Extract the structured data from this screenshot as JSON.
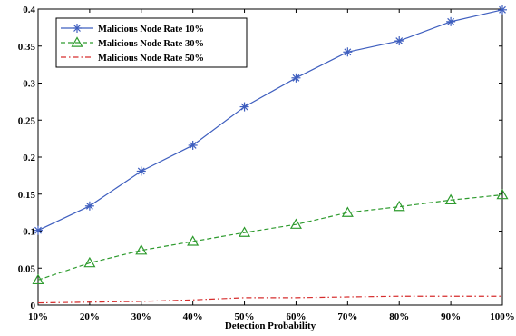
{
  "chart_data": {
    "type": "line",
    "xlabel": "Detection Probability",
    "ylabel": "",
    "x": [
      "10%",
      "20%",
      "30%",
      "40%",
      "50%",
      "60%",
      "70%",
      "80%",
      "90%",
      "100%"
    ],
    "ylim": [
      0,
      0.4
    ],
    "yticks": [
      "0",
      "0.05",
      "0.1",
      "0.15",
      "0.2",
      "0.25",
      "0.3",
      "0.35",
      "0.4"
    ],
    "grid": false,
    "legend_position": "top-left",
    "series": [
      {
        "name": "Malicious Node Rate 10%",
        "color": "#3f5fbf",
        "marker": "star",
        "line_style": "solid",
        "values": [
          0.101,
          0.134,
          0.181,
          0.216,
          0.268,
          0.307,
          0.342,
          0.357,
          0.383,
          0.399
        ]
      },
      {
        "name": "Malicious Node Rate 30%",
        "color": "#2e9b2e",
        "marker": "triangle",
        "line_style": "dashed",
        "values": [
          0.034,
          0.057,
          0.074,
          0.086,
          0.098,
          0.109,
          0.125,
          0.133,
          0.142,
          0.149
        ]
      },
      {
        "name": "Malicious Node Rate 50%",
        "color": "#d62d2d",
        "marker": "none",
        "line_style": "dashdot",
        "values": [
          0.003,
          0.004,
          0.005,
          0.007,
          0.01,
          0.01,
          0.011,
          0.012,
          0.012,
          0.012
        ]
      }
    ]
  }
}
